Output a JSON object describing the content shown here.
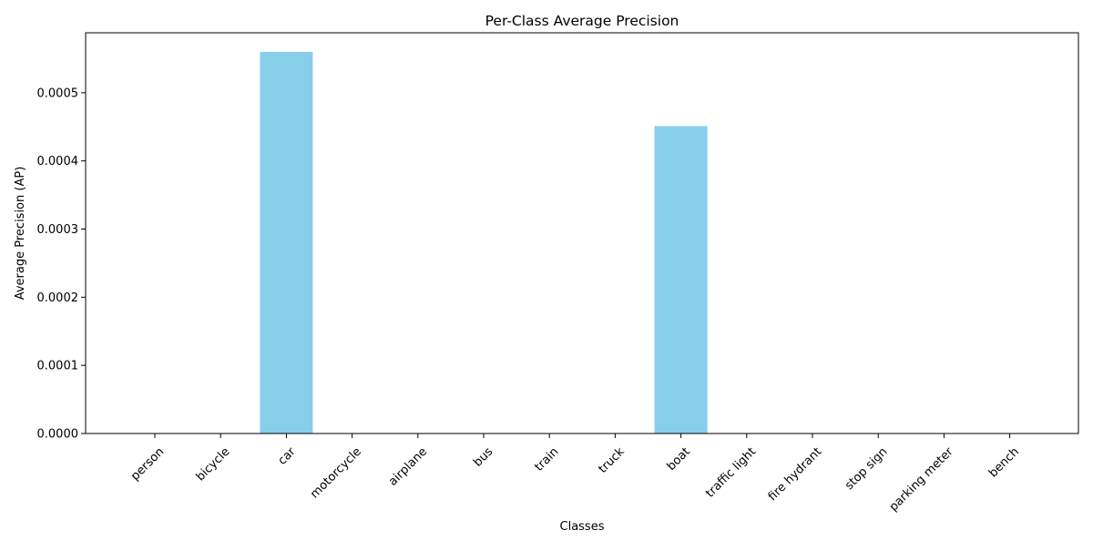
{
  "chart_data": {
    "type": "bar",
    "title": "Per-Class Average Precision",
    "xlabel": "Classes",
    "ylabel": "Average Precision (AP)",
    "categories": [
      "person",
      "bicycle",
      "car",
      "motorcycle",
      "airplane",
      "bus",
      "train",
      "truck",
      "boat",
      "traffic light",
      "fire hydrant",
      "stop sign",
      "parking meter",
      "bench"
    ],
    "values": [
      0,
      0,
      0.00056,
      0,
      0,
      0,
      0,
      0,
      0.000451,
      0,
      0,
      0,
      0,
      0
    ],
    "ylim": [
      0,
      0.000588
    ],
    "yticks": [
      0,
      0.0001,
      0.0002,
      0.0003,
      0.0004,
      0.0005
    ],
    "ytick_labels": [
      "0.0000",
      "0.0001",
      "0.0002",
      "0.0003",
      "0.0004",
      "0.0005"
    ],
    "bar_color": "#87CEEB",
    "grid": false,
    "legend": "none"
  }
}
